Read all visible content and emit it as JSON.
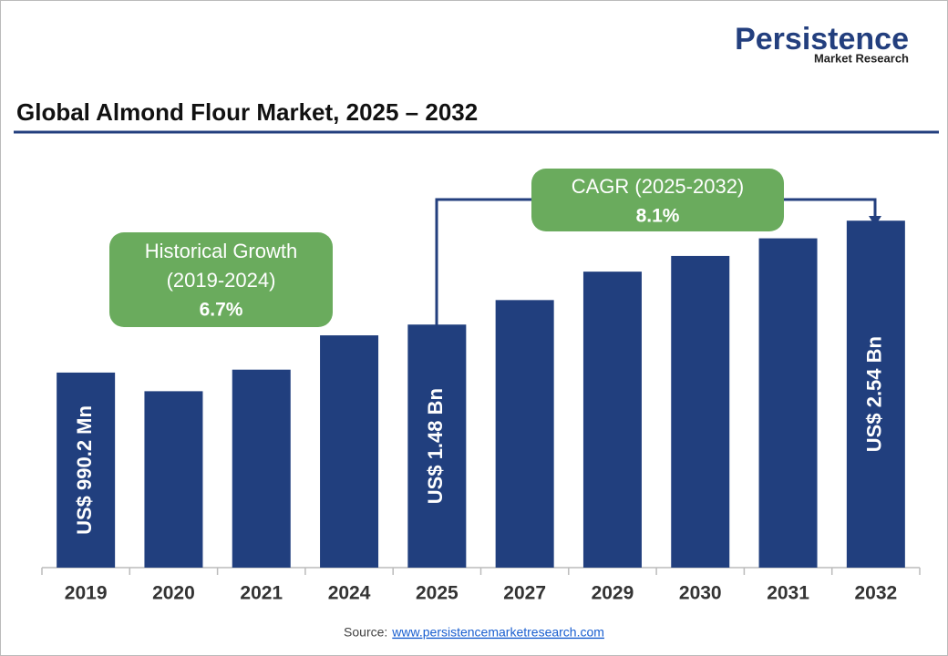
{
  "brand": [
    "Persistence",
    "Market Research"
  ],
  "chart_data": {
    "type": "bar",
    "title": "Global Almond Flour Market, 2025 – 2032",
    "categories": [
      "2019",
      "2020",
      "2021",
      "2024",
      "2025",
      "2027",
      "2029",
      "2030",
      "2031",
      "2032"
    ],
    "values": [
      0.9902,
      0.8,
      1.02,
      1.37,
      1.48,
      1.73,
      2.02,
      2.18,
      2.36,
      2.54
    ],
    "value_labels": [
      "US$ 990.2 Mn",
      null,
      null,
      null,
      "US$ 1.48 Bn",
      null,
      null,
      null,
      null,
      "US$ 2.54 Bn"
    ],
    "color": "#213f7e",
    "ylim": [
      -1,
      2.7
    ],
    "annotations": [
      [
        "Historical Growth",
        "(2019-2024)",
        "6.7%"
      ],
      [
        "CAGR (2025-2032)",
        "8.1%"
      ]
    ],
    "annotation_color": "#6aab5d"
  },
  "source": {
    "label": "Source:",
    "url": "www.persistencemarketresearch.com"
  }
}
